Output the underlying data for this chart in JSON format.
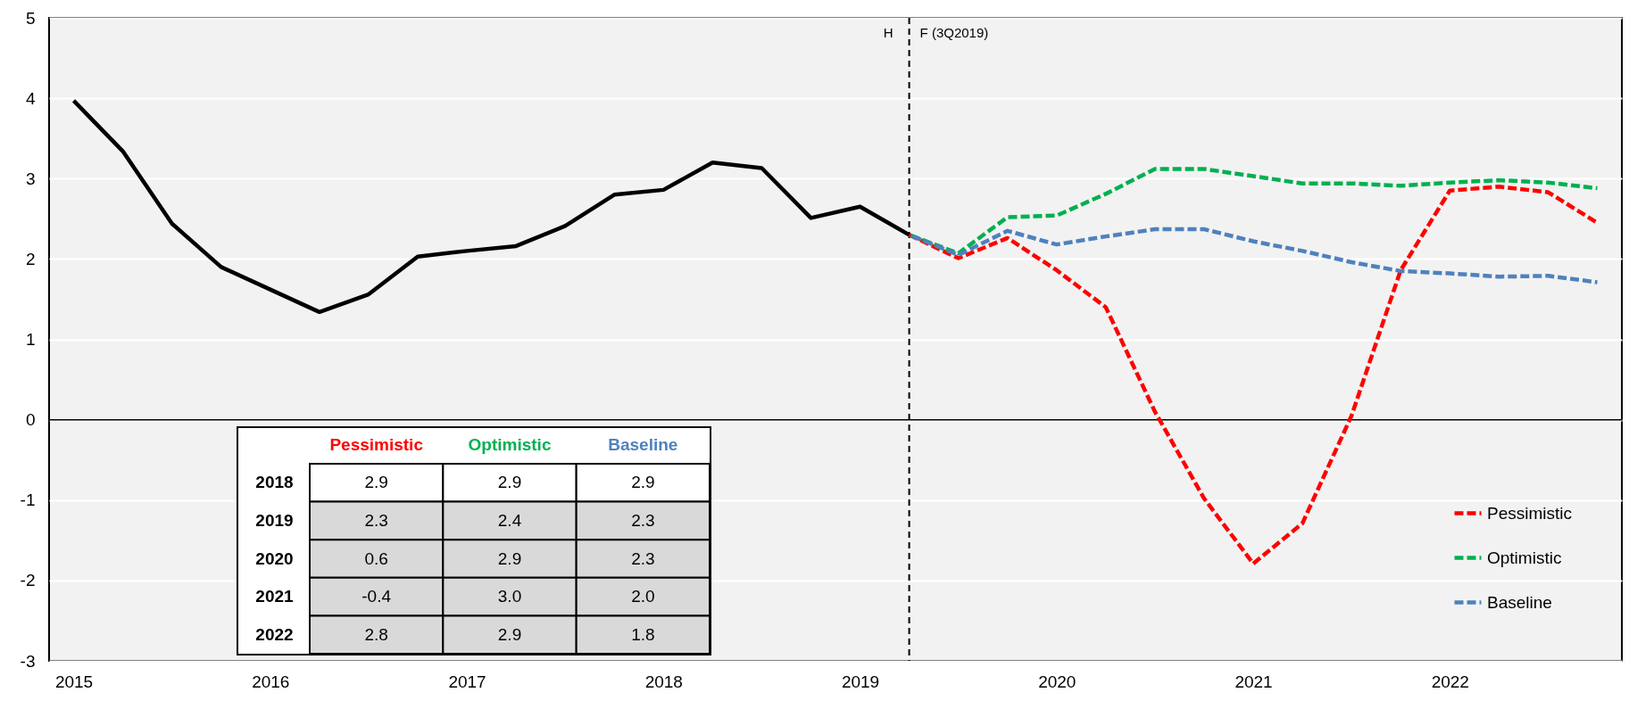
{
  "chart_data": [
    {
      "type": "line",
      "xlim": [
        2014.875,
        2022.875
      ],
      "xticks": [
        2015,
        2016,
        2017,
        2018,
        2019,
        2020,
        2021,
        2022
      ],
      "ylim": [
        -3,
        5
      ],
      "yticks": [
        -3,
        -2,
        -1,
        0,
        1,
        2,
        3,
        4,
        5
      ],
      "grid": "y",
      "legend": "bottom right",
      "series": [
        {
          "color": "#000000",
          "line_style": "solid",
          "x": [
            2015,
            2015.25,
            2015.5,
            2015.75,
            2016,
            2016.25,
            2016.5,
            2016.75,
            2017,
            2017.25,
            2017.5,
            2017.75,
            2018,
            2018.25,
            2018.5,
            2018.75,
            2019,
            2019.25
          ],
          "values": [
            3.97,
            3.34,
            2.44,
            1.9,
            1.62,
            1.34,
            1.56,
            2.03,
            2.1,
            2.16,
            2.41,
            2.8,
            2.86,
            3.2,
            3.13,
            2.51,
            2.65,
            2.3
          ]
        },
        {
          "name": "Pessimistic",
          "color": "#ff0000",
          "line_style": "dashed",
          "x": [
            2019.25,
            2019.5,
            2019.75,
            2020,
            2020.25,
            2020.5,
            2020.75,
            2021,
            2021.25,
            2021.5,
            2021.75,
            2022,
            2022.25,
            2022.5,
            2022.75
          ],
          "values": [
            2.3,
            2.01,
            2.26,
            1.86,
            1.4,
            0.1,
            -0.98,
            -1.79,
            -1.29,
            0.05,
            1.86,
            2.85,
            2.9,
            2.83,
            2.45
          ]
        },
        {
          "name": "Optimistic",
          "color": "#00b050",
          "line_style": "dashed",
          "x": [
            2019.25,
            2019.5,
            2019.75,
            2020,
            2020.25,
            2020.5,
            2020.75,
            2021,
            2021.25,
            2021.5,
            2021.75,
            2022,
            2022.25,
            2022.5,
            2022.75
          ],
          "values": [
            2.3,
            2.07,
            2.52,
            2.54,
            2.81,
            3.12,
            3.12,
            3.03,
            2.94,
            2.94,
            2.91,
            2.95,
            2.98,
            2.95,
            2.88
          ]
        },
        {
          "name": "Baseline",
          "color": "#4f81bd",
          "line_style": "dashed",
          "x": [
            2019.25,
            2019.5,
            2019.75,
            2020,
            2020.25,
            2020.5,
            2020.75,
            2021,
            2021.25,
            2021.5,
            2021.75,
            2022,
            2022.25,
            2022.5,
            2022.75
          ],
          "values": [
            2.3,
            2.05,
            2.35,
            2.18,
            2.28,
            2.37,
            2.37,
            2.22,
            2.1,
            1.96,
            1.85,
            1.82,
            1.78,
            1.79,
            1.71
          ]
        }
      ],
      "ref_lines": [
        {
          "axis": "x",
          "value": 2019.25,
          "color": "#000000",
          "line_style": "dashed"
        },
        {
          "axis": "y",
          "value": 0,
          "color": "#000000",
          "line_style": "solid"
        }
      ],
      "annotations": [
        "H",
        "F (3Q2019)"
      ]
    },
    {
      "type": "heatmap",
      "categories": [
        "Pessimistic",
        "Optimistic",
        "Baseline"
      ],
      "y_categories": [
        "2018",
        "2019",
        "2020",
        "2021",
        "2022"
      ],
      "cells": [
        [
          2.9,
          2.9,
          2.9
        ],
        [
          2.3,
          2.4,
          2.3
        ],
        [
          0.6,
          2.9,
          2.3
        ],
        [
          -0.4,
          3.0,
          2.0
        ],
        [
          2.8,
          2.9,
          1.8
        ]
      ],
      "cell_labels": [
        [
          "2.9",
          "2.9",
          "2.9"
        ],
        [
          "2.3",
          "2.4",
          "2.3"
        ],
        [
          "0.6",
          "2.9",
          "2.3"
        ],
        [
          "-0.4",
          "3.0",
          "2.0"
        ],
        [
          "2.8",
          "2.9",
          "1.8"
        ]
      ]
    }
  ]
}
